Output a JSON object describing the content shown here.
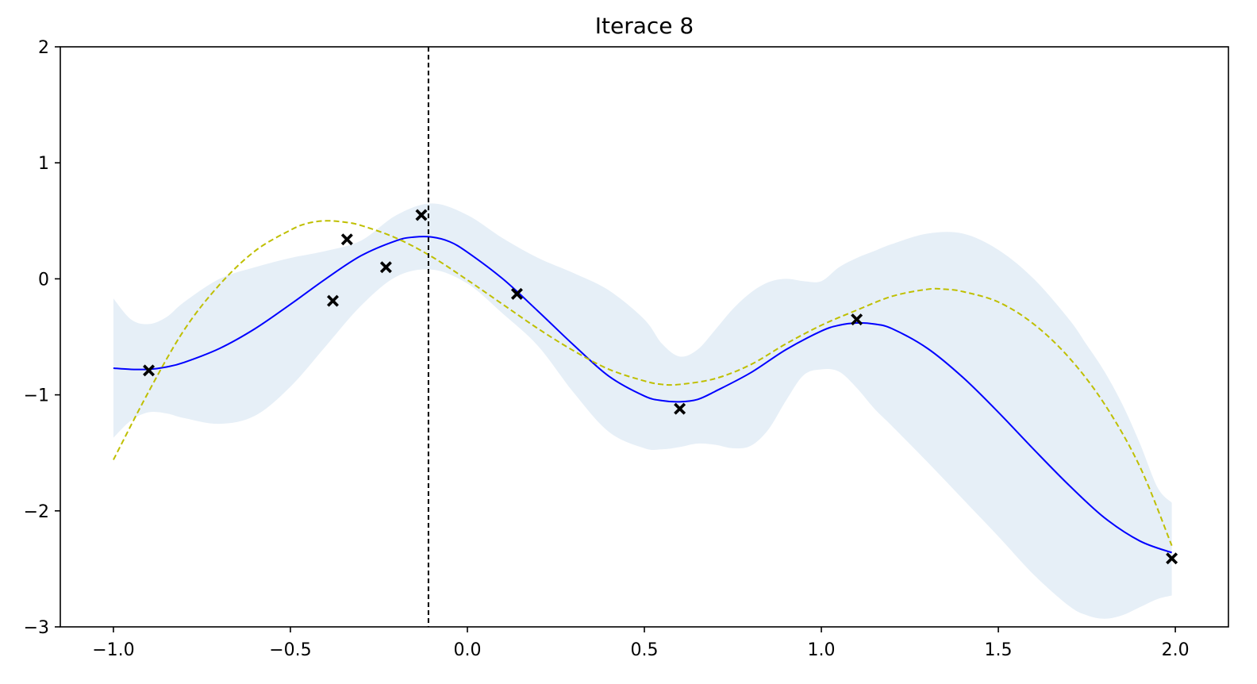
{
  "chart_data": {
    "type": "line",
    "title": "Iterace 8",
    "xlabel": "",
    "ylabel": "",
    "xlim": [
      -1.15,
      2.15
    ],
    "ylim": [
      -3,
      2
    ],
    "grid": false,
    "x_ticks": [
      -1.0,
      -0.5,
      0.0,
      0.5,
      1.0,
      1.5,
      2.0
    ],
    "x_tick_labels": [
      "−1.0",
      "−0.5",
      "0.0",
      "0.5",
      "1.0",
      "1.5",
      "2.0"
    ],
    "y_ticks": [
      2,
      1,
      0,
      -1,
      -2,
      -3
    ],
    "y_tick_labels": [
      "2",
      "1",
      "0",
      "−1",
      "−2",
      "−3"
    ],
    "vertical_line": {
      "x": -0.11,
      "style": "dashed",
      "color": "#000000"
    },
    "colors": {
      "mean": "#0000ff",
      "target": "#bfbf00",
      "band": "#e6eff7",
      "points": "#000000"
    },
    "series": [
      {
        "kind": "band",
        "x": [
          -1.0,
          -0.95,
          -0.9,
          -0.85,
          -0.8,
          -0.7,
          -0.6,
          -0.5,
          -0.4,
          -0.3,
          -0.2,
          -0.1,
          0.0,
          0.1,
          0.2,
          0.3,
          0.4,
          0.5,
          0.55,
          0.6,
          0.65,
          0.7,
          0.75,
          0.8,
          0.85,
          0.9,
          0.95,
          1.0,
          1.05,
          1.1,
          1.15,
          1.2,
          1.3,
          1.4,
          1.5,
          1.6,
          1.7,
          1.75,
          1.8,
          1.85,
          1.9,
          1.95,
          1.99
        ],
        "lower": [
          -1.37,
          -1.22,
          -1.15,
          -1.16,
          -1.2,
          -1.25,
          -1.18,
          -0.93,
          -0.58,
          -0.23,
          0.02,
          0.08,
          -0.04,
          -0.3,
          -0.58,
          -0.98,
          -1.32,
          -1.46,
          -1.47,
          -1.45,
          -1.42,
          -1.43,
          -1.46,
          -1.44,
          -1.3,
          -1.05,
          -0.83,
          -0.78,
          -0.8,
          -0.94,
          -1.12,
          -1.27,
          -1.58,
          -1.9,
          -2.22,
          -2.55,
          -2.82,
          -2.9,
          -2.93,
          -2.9,
          -2.83,
          -2.76,
          -2.73
        ],
        "upper": [
          -0.17,
          -0.35,
          -0.39,
          -0.33,
          -0.2,
          0.0,
          0.1,
          0.18,
          0.24,
          0.33,
          0.55,
          0.65,
          0.55,
          0.35,
          0.18,
          0.05,
          -0.1,
          -0.35,
          -0.56,
          -0.67,
          -0.61,
          -0.44,
          -0.26,
          -0.12,
          -0.03,
          0.0,
          -0.02,
          -0.02,
          0.1,
          0.18,
          0.24,
          0.3,
          0.39,
          0.39,
          0.25,
          0.0,
          -0.35,
          -0.57,
          -0.8,
          -1.08,
          -1.42,
          -1.8,
          -1.93
        ]
      },
      {
        "kind": "line",
        "style": "solid",
        "x": [
          -1.0,
          -0.95,
          -0.9,
          -0.85,
          -0.8,
          -0.7,
          -0.6,
          -0.5,
          -0.4,
          -0.3,
          -0.2,
          -0.15,
          -0.1,
          -0.05,
          0.0,
          0.1,
          0.2,
          0.3,
          0.4,
          0.5,
          0.55,
          0.6,
          0.65,
          0.7,
          0.8,
          0.9,
          1.0,
          1.05,
          1.1,
          1.15,
          1.2,
          1.3,
          1.4,
          1.5,
          1.6,
          1.7,
          1.8,
          1.9,
          1.99
        ],
        "y": [
          -0.77,
          -0.78,
          -0.78,
          -0.76,
          -0.72,
          -0.6,
          -0.43,
          -0.22,
          0.0,
          0.2,
          0.33,
          0.36,
          0.36,
          0.32,
          0.23,
          0.0,
          -0.28,
          -0.57,
          -0.84,
          -1.01,
          -1.05,
          -1.06,
          -1.04,
          -0.97,
          -0.81,
          -0.61,
          -0.45,
          -0.4,
          -0.38,
          -0.39,
          -0.43,
          -0.6,
          -0.85,
          -1.15,
          -1.47,
          -1.78,
          -2.06,
          -2.26,
          -2.36
        ]
      },
      {
        "kind": "line",
        "style": "dashed",
        "x": [
          -1.0,
          -0.9,
          -0.8,
          -0.7,
          -0.6,
          -0.5,
          -0.45,
          -0.4,
          -0.35,
          -0.3,
          -0.2,
          -0.1,
          0.0,
          0.1,
          0.2,
          0.3,
          0.4,
          0.5,
          0.55,
          0.6,
          0.7,
          0.8,
          0.9,
          1.0,
          1.1,
          1.2,
          1.3,
          1.35,
          1.4,
          1.5,
          1.6,
          1.7,
          1.8,
          1.9,
          1.99
        ],
        "y": [
          -1.56,
          -0.97,
          -0.44,
          -0.05,
          0.24,
          0.42,
          0.48,
          0.5,
          0.49,
          0.46,
          0.35,
          0.19,
          -0.01,
          -0.22,
          -0.43,
          -0.62,
          -0.78,
          -0.88,
          -0.91,
          -0.91,
          -0.86,
          -0.74,
          -0.56,
          -0.4,
          -0.27,
          -0.15,
          -0.09,
          -0.09,
          -0.11,
          -0.2,
          -0.39,
          -0.68,
          -1.08,
          -1.62,
          -2.3
        ]
      },
      {
        "kind": "scatter",
        "marker": "x",
        "x": [
          -0.9,
          -0.38,
          -0.34,
          -0.23,
          -0.13,
          0.14,
          0.6,
          1.1,
          1.99
        ],
        "y": [
          -0.79,
          -0.19,
          0.34,
          0.1,
          0.55,
          -0.13,
          -1.12,
          -0.35,
          -2.41
        ]
      }
    ]
  }
}
